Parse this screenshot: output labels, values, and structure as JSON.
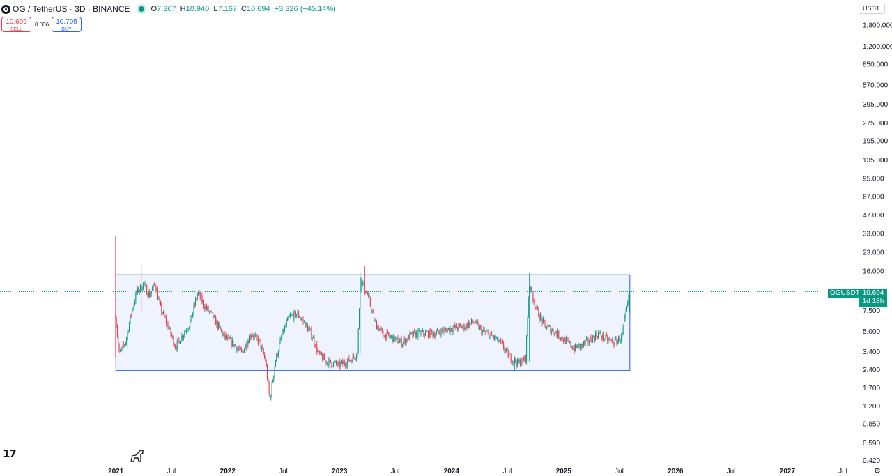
{
  "header": {
    "symbol_title": "OG / TetherUS · 3D · BINANCE",
    "symbol_icon": "og-coin-icon",
    "status_icon": "market-open-dot-icon",
    "ohlc": {
      "o_label": "O",
      "o_value": "7.367",
      "h_label": "H",
      "h_value": "10.940",
      "l_label": "L",
      "l_value": "7.167",
      "c_label": "C",
      "c_value": "10.694",
      "change": "+3.326 (+45.14%)"
    }
  },
  "trade": {
    "sell_price": "10.699",
    "sell_label": "SELL",
    "spread": "0.006",
    "buy_price": "10.705",
    "buy_label": "BUY"
  },
  "currency": "USDT",
  "last_price": {
    "symbol": "OGUSDT",
    "value": "10.694",
    "countdown": "1d 18h"
  },
  "colors": {
    "up": "#089981",
    "down": "#f23645",
    "box_border": "#2962ff",
    "box_fill": "#e8effd",
    "buy": "#2962ff",
    "sell": "#f23645"
  },
  "chart_data": {
    "type": "candlestick",
    "scale": "log",
    "y_ticks": [
      "1,800.000",
      "1,200.000",
      "850.000",
      "570.000",
      "395.000",
      "275.000",
      "195.000",
      "135.000",
      "95.000",
      "67.000",
      "47.000",
      "33.000",
      "23.000",
      "16.000",
      "7.500",
      "5.000",
      "3.400",
      "2.400",
      "1.700",
      "1.200",
      "0.850",
      "0.590",
      "0.420"
    ],
    "y_tick_values": [
      1800,
      1200,
      850,
      570,
      395,
      275,
      195,
      135,
      95,
      67,
      47,
      33,
      23,
      16,
      7.5,
      5,
      3.4,
      2.4,
      1.7,
      1.2,
      0.85,
      0.59,
      0.42
    ],
    "x_ticks": [
      {
        "label": "2021",
        "date": "2021-01-01",
        "bold": true
      },
      {
        "label": "Jul",
        "date": "2021-07-01",
        "bold": false
      },
      {
        "label": "2022",
        "date": "2022-01-01",
        "bold": true
      },
      {
        "label": "Jul",
        "date": "2022-07-01",
        "bold": false
      },
      {
        "label": "2023",
        "date": "2023-01-01",
        "bold": true
      },
      {
        "label": "Jul",
        "date": "2023-07-01",
        "bold": false
      },
      {
        "label": "2024",
        "date": "2024-01-01",
        "bold": true
      },
      {
        "label": "Jul",
        "date": "2024-07-01",
        "bold": false
      },
      {
        "label": "2025",
        "date": "2025-01-01",
        "bold": true
      },
      {
        "label": "Jul",
        "date": "2025-07-01",
        "bold": false
      },
      {
        "label": "2026",
        "date": "2026-01-01",
        "bold": true
      },
      {
        "label": "Jul",
        "date": "2026-07-01",
        "bold": false
      },
      {
        "label": "2027",
        "date": "2027-01-01",
        "bold": true
      },
      {
        "label": "Jul",
        "date": "2027-07-01",
        "bold": false
      }
    ],
    "price_path": [
      [
        "2020-12-31",
        7.0
      ],
      [
        "2021-01-12",
        3.2
      ],
      [
        "2021-02-01",
        4.0
      ],
      [
        "2021-02-20",
        7.0
      ],
      [
        "2021-03-10",
        10.5
      ],
      [
        "2021-04-01",
        12.5
      ],
      [
        "2021-04-20",
        10.0
      ],
      [
        "2021-05-10",
        12.5
      ],
      [
        "2021-05-25",
        8.0
      ],
      [
        "2021-06-20",
        5.5
      ],
      [
        "2021-07-15",
        3.7
      ],
      [
        "2021-08-10",
        4.8
      ],
      [
        "2021-09-01",
        6.0
      ],
      [
        "2021-09-25",
        10.5
      ],
      [
        "2021-10-20",
        8.0
      ],
      [
        "2021-11-15",
        6.5
      ],
      [
        "2021-12-20",
        4.5
      ],
      [
        "2022-01-15",
        4.0
      ],
      [
        "2022-02-15",
        3.3
      ],
      [
        "2022-03-20",
        4.8
      ],
      [
        "2022-04-15",
        4.0
      ],
      [
        "2022-05-05",
        2.8
      ],
      [
        "2022-05-18",
        1.3
      ],
      [
        "2022-06-05",
        2.8
      ],
      [
        "2022-06-25",
        4.5
      ],
      [
        "2022-07-20",
        6.5
      ],
      [
        "2022-08-15",
        7.0
      ],
      [
        "2022-09-10",
        5.8
      ],
      [
        "2022-10-05",
        4.5
      ],
      [
        "2022-10-25",
        3.2
      ],
      [
        "2022-11-20",
        2.8
      ],
      [
        "2022-12-31",
        2.6
      ],
      [
        "2023-02-05",
        2.9
      ],
      [
        "2023-02-28",
        3.3
      ],
      [
        "2023-03-10",
        14.0
      ],
      [
        "2023-04-05",
        9.5
      ],
      [
        "2023-04-25",
        6.0
      ],
      [
        "2023-05-20",
        4.8
      ],
      [
        "2023-06-30",
        4.3
      ],
      [
        "2023-07-25",
        4.0
      ],
      [
        "2023-08-20",
        4.6
      ],
      [
        "2023-09-20",
        4.8
      ],
      [
        "2023-11-10",
        4.8
      ],
      [
        "2023-12-20",
        5.2
      ],
      [
        "2024-02-10",
        5.5
      ],
      [
        "2024-03-15",
        6.0
      ],
      [
        "2024-04-10",
        5.0
      ],
      [
        "2024-05-20",
        4.4
      ],
      [
        "2024-06-15",
        3.8
      ],
      [
        "2024-07-10",
        3.0
      ],
      [
        "2024-08-05",
        2.7
      ],
      [
        "2024-08-30",
        3.0
      ],
      [
        "2024-09-10",
        12.5
      ],
      [
        "2024-10-05",
        7.5
      ],
      [
        "2024-11-01",
        5.5
      ],
      [
        "2024-12-01",
        5.0
      ],
      [
        "2025-01-01",
        4.3
      ],
      [
        "2025-02-05",
        3.6
      ],
      [
        "2025-03-01",
        3.8
      ],
      [
        "2025-03-25",
        4.2
      ],
      [
        "2025-04-25",
        4.8
      ],
      [
        "2025-05-20",
        4.3
      ],
      [
        "2025-06-15",
        4.0
      ],
      [
        "2025-07-10",
        4.5
      ],
      [
        "2025-08-05",
        10.694
      ]
    ],
    "special_wicks": [
      {
        "date": "2020-12-31",
        "high": 31.0,
        "low": 3.0
      },
      {
        "date": "2021-03-25",
        "high": 18.0,
        "low": 7.0
      },
      {
        "date": "2021-05-08",
        "high": 17.5,
        "low": 8.0
      },
      {
        "date": "2022-05-18",
        "high": 2.0,
        "low": 1.15
      },
      {
        "date": "2023-03-10",
        "high": 15.5,
        "low": 3.2
      },
      {
        "date": "2023-03-25",
        "high": 17.5,
        "low": 10.0
      },
      {
        "date": "2024-09-10",
        "high": 15.2,
        "low": 2.8
      },
      {
        "date": "2024-07-25",
        "high": 3.0,
        "low": 2.3
      }
    ],
    "range_box": {
      "start": "2021-01-01",
      "end": "2025-08-05",
      "high": 14.8,
      "low": 2.35
    },
    "last": 10.694,
    "ylim": [
      0.41,
      2050
    ],
    "xlim": [
      "2019-12-20",
      "2027-08-12"
    ]
  }
}
